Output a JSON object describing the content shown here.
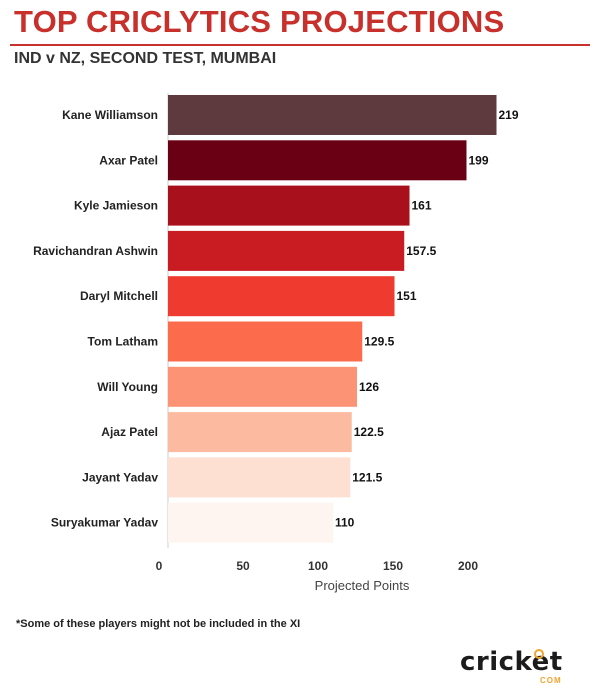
{
  "title": "TOP CRICLYTICS PROJECTIONS",
  "subtitle": "IND v NZ, SECOND TEST, MUMBAI",
  "footnote": "*Some of these players might not be included in the XI",
  "logo": {
    "word": "cricket",
    "sub": "COM",
    "name": "cricket-com-logo"
  },
  "colors": {
    "accent": "#c8302b",
    "logo_accent": "#f2a42e"
  },
  "chart_data": {
    "type": "bar",
    "orientation": "horizontal",
    "categories": [
      "Kane Williamson",
      "Axar Patel",
      "Kyle Jamieson",
      "Ravichandran Ashwin",
      "Daryl Mitchell",
      "Tom Latham",
      "Will Young",
      "Ajaz Patel",
      "Jayant Yadav",
      "Suryakumar Yadav"
    ],
    "values": [
      219,
      199,
      161,
      157.5,
      151,
      129.5,
      126,
      122.5,
      121.5,
      110
    ],
    "value_labels": [
      "219",
      "199",
      "161",
      "157.5",
      "151",
      "129.5",
      "126",
      "122.5",
      "121.5",
      "110"
    ],
    "bar_colors": [
      "#5e3a3f",
      "#6a0013",
      "#a8101b",
      "#c81c22",
      "#ee3a2f",
      "#fb6b4c",
      "#fc9375",
      "#fcbba1",
      "#fee0d2",
      "#fff5f0"
    ],
    "xlabel": "Projected Points",
    "xticks": [
      0,
      50,
      100,
      150,
      200
    ],
    "xlim": [
      0,
      235
    ],
    "grid": false,
    "legend": "none"
  }
}
